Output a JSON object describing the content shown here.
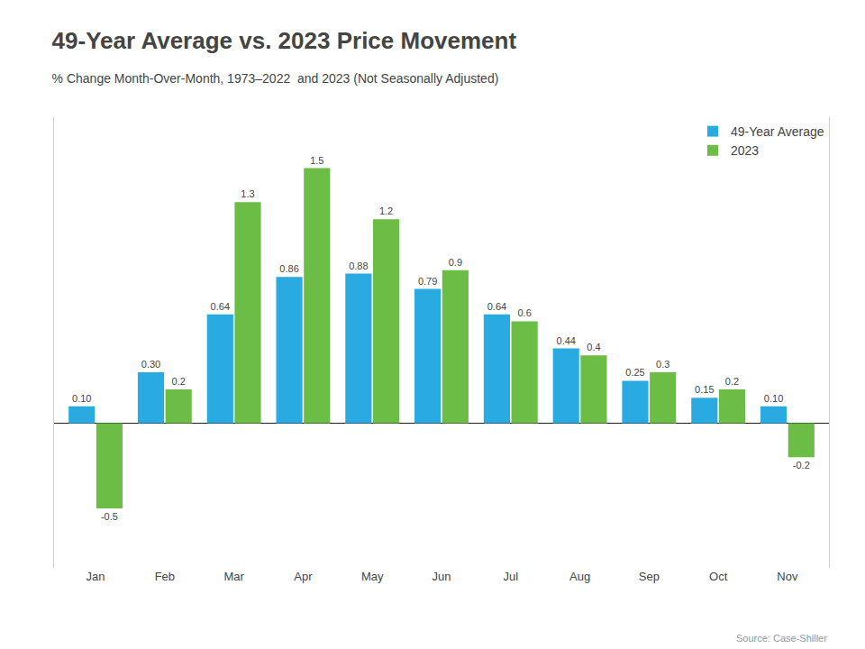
{
  "chart_data": {
    "type": "bar",
    "title": "49-Year Average vs. 2023 Price Movement",
    "subtitle": "% Change Month-Over-Month, 1973–2022  and 2023 (Not Seasonally Adjusted)",
    "annotations": [
      "Source: Case-Shiller"
    ],
    "categories": [
      "Jan",
      "Feb",
      "Mar",
      "Apr",
      "May",
      "Jun",
      "Jul",
      "Aug",
      "Sep",
      "Oct",
      "Nov"
    ],
    "series": [
      {
        "name": "49-Year Average",
        "color": "#29ABE2",
        "values": [
          0.1,
          0.3,
          0.64,
          0.86,
          0.88,
          0.79,
          0.64,
          0.44,
          0.25,
          0.15,
          0.1
        ],
        "value_labels": [
          "0.10",
          "0.30",
          "0.64",
          "0.86",
          "0.88",
          "0.79",
          "0.64",
          "0.44",
          "0.25",
          "0.15",
          "0.10"
        ]
      },
      {
        "name": "2023",
        "color": "#6BBD45",
        "values": [
          -0.5,
          0.2,
          1.3,
          1.5,
          1.2,
          0.9,
          0.6,
          0.4,
          0.3,
          0.2,
          -0.2
        ]
      }
    ],
    "ylim": [
      -0.85,
      1.8
    ],
    "yticks": [],
    "tick_labels": "x",
    "grid": false,
    "legend": "upper right",
    "data_labels": true
  }
}
